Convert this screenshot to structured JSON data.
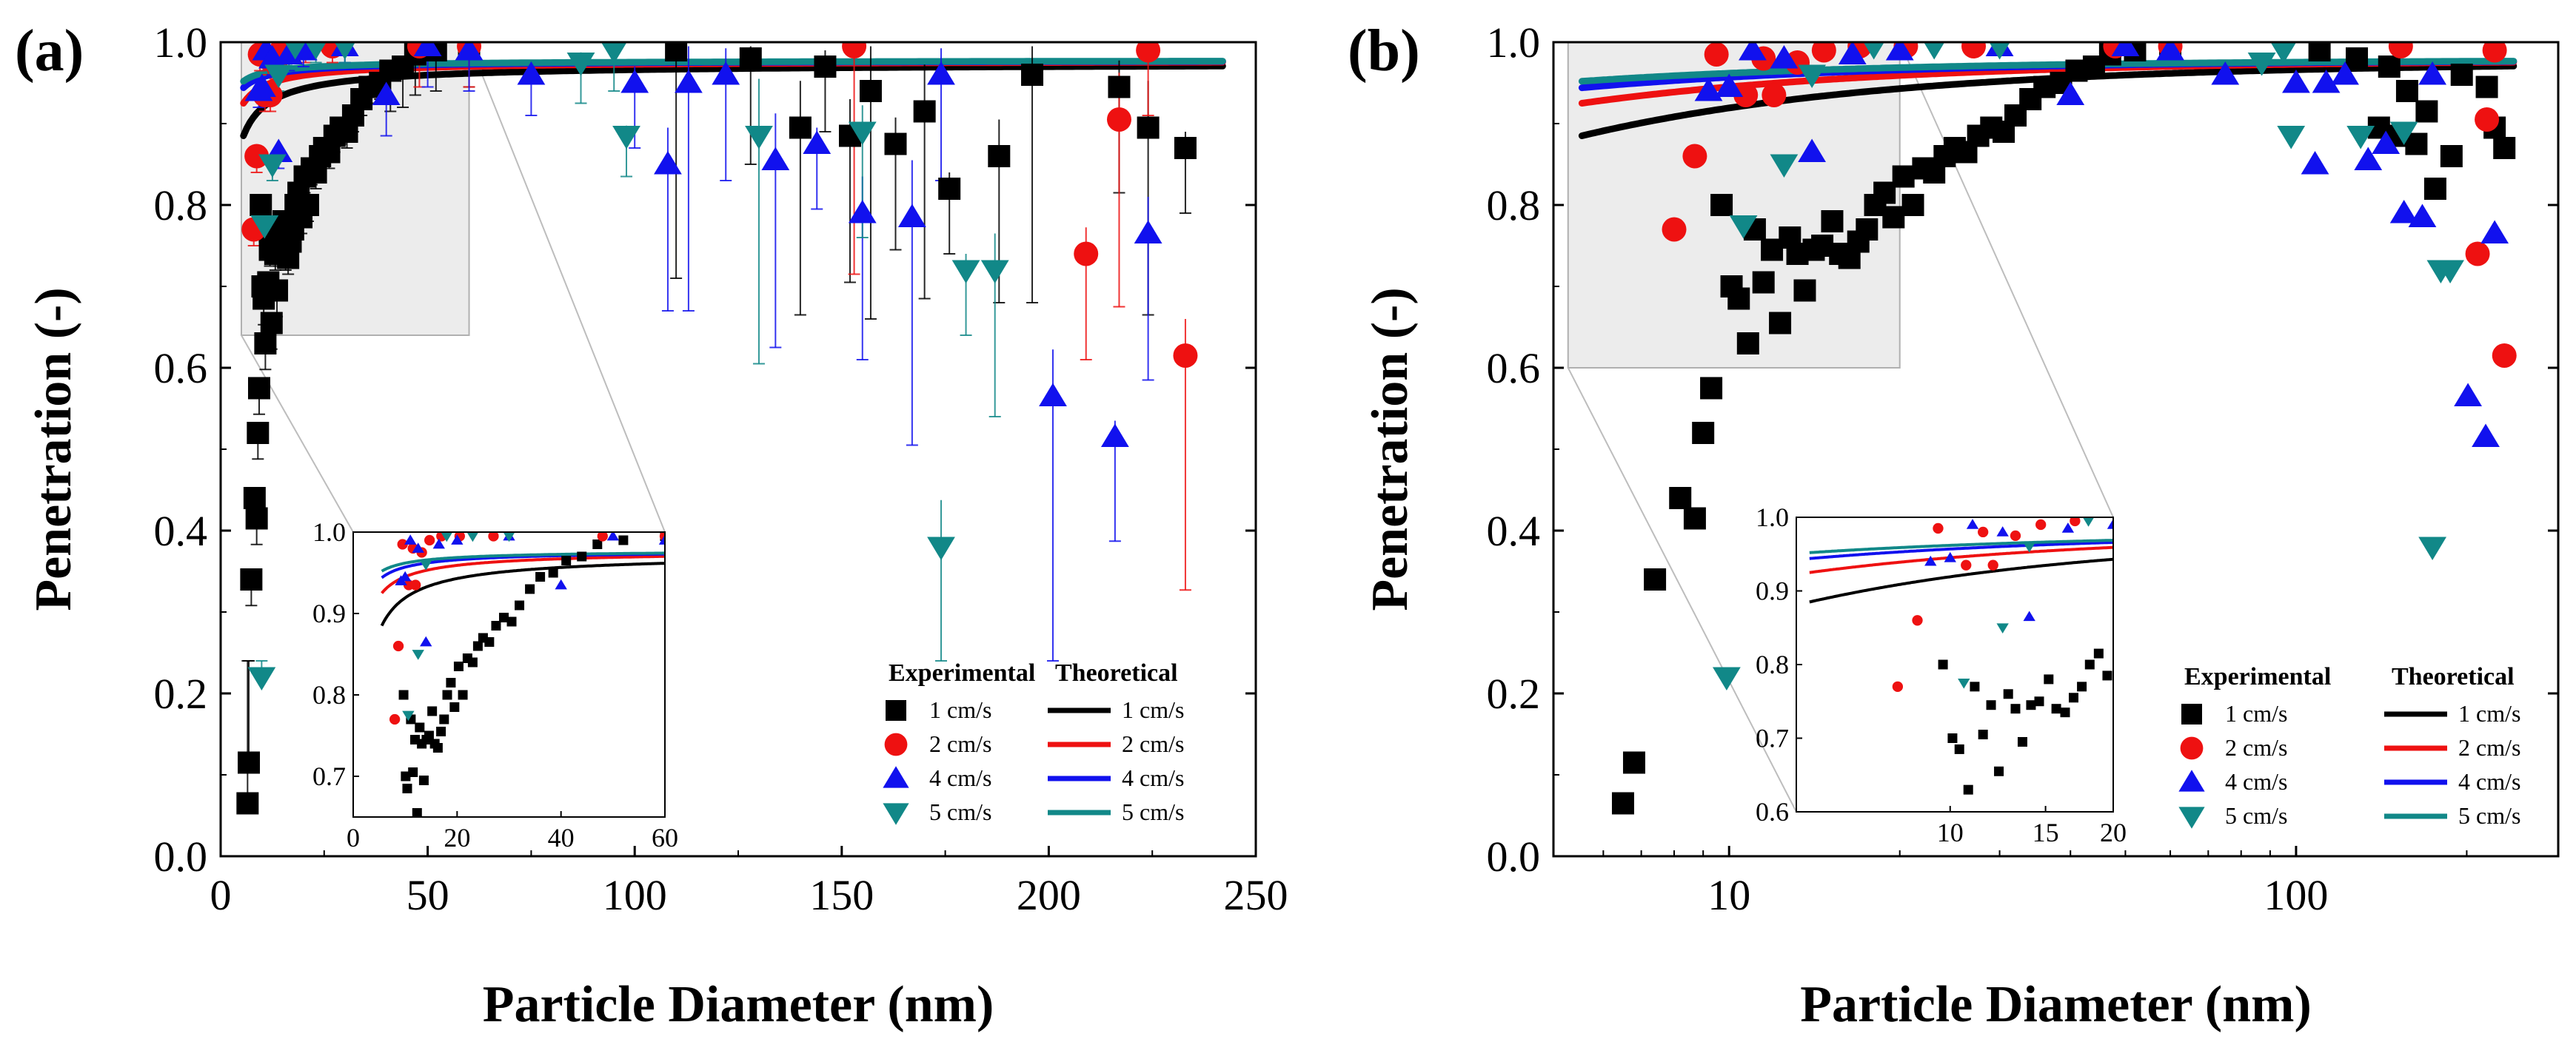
{
  "chart_data": [
    {
      "type": "scatter",
      "panel_label": "(a)",
      "xlabel": "Particle Diameter (nm)",
      "ylabel": "Penetration (-)",
      "xscale": "linear",
      "xlim": [
        0,
        250
      ],
      "ylim": [
        0,
        1.0
      ],
      "xticks": [
        0,
        50,
        100,
        150,
        200,
        250
      ],
      "xtick_labels": [
        "0",
        "50",
        "100",
        "150",
        "200",
        "250"
      ],
      "yticks": [
        0,
        0.2,
        0.4,
        0.6,
        0.8,
        1.0
      ],
      "ytick_labels": [
        "0.0",
        "0.2",
        "0.4",
        "0.6",
        "0.8",
        "1.0"
      ],
      "legend": {
        "experimental_title": "Experimental",
        "theoretical_title": "Theoretical",
        "entries": [
          "1 cm/s",
          "2 cm/s",
          "4 cm/s",
          "5 cm/s"
        ]
      },
      "zoom_box": {
        "x": [
          5,
          60
        ],
        "y": [
          0.64,
          1.0
        ]
      },
      "inset": {
        "xlim": [
          0,
          60
        ],
        "ylim": [
          0.65,
          1.0
        ],
        "xticks": [
          0,
          20,
          40,
          60
        ],
        "xtick_labels": [
          "0",
          "20",
          "40",
          "60"
        ],
        "yticks": [
          0.7,
          0.8,
          0.9,
          1.0
        ],
        "ytick_labels": [
          "0.7",
          "0.8",
          "0.9",
          "1.0"
        ]
      }
    },
    {
      "type": "scatter",
      "panel_label": "(b)",
      "xlabel": "Particle Diameter (nm)",
      "ylabel": "Penetration (-)",
      "xscale": "log",
      "xlim": [
        4.9,
        290
      ],
      "ylim": [
        0,
        1.0
      ],
      "xticks": [
        10,
        100
      ],
      "xtick_labels": [
        "10",
        "100"
      ],
      "yticks": [
        0,
        0.2,
        0.4,
        0.6,
        0.8,
        1.0
      ],
      "ytick_labels": [
        "0.0",
        "0.2",
        "0.4",
        "0.6",
        "0.8",
        "1.0"
      ],
      "legend": {
        "experimental_title": "Experimental",
        "theoretical_title": "Theoretical",
        "entries": [
          "1 cm/s",
          "2 cm/s",
          "4 cm/s",
          "5 cm/s"
        ]
      },
      "zoom_box": {
        "x": [
          5.2,
          20
        ],
        "y": [
          0.6,
          1.0
        ]
      },
      "inset": {
        "xscale": "log",
        "xlim": [
          5.2,
          20
        ],
        "ylim": [
          0.6,
          1.0
        ],
        "xticks": [
          10,
          15,
          20
        ],
        "xtick_labels": [
          "10",
          "15",
          "20"
        ],
        "yticks": [
          0.6,
          0.7,
          0.8,
          0.9,
          1.0
        ],
        "ytick_labels": [
          "0.6",
          "0.7",
          "0.8",
          "0.9",
          "1.0"
        ]
      }
    }
  ],
  "series": [
    {
      "name": "1 cm/s",
      "color": "#000000",
      "marker": "square",
      "theory": {
        "p_max": 0.975,
        "a": 0.09,
        "d_ref": 5.5,
        "power": 0.8
      },
      "points": [
        [
          6.5,
          0.065
        ],
        [
          6.8,
          0.115
        ],
        [
          7.4,
          0.34
        ],
        [
          8.2,
          0.44
        ],
        [
          8.7,
          0.415
        ],
        [
          9.0,
          0.52
        ],
        [
          9.3,
          0.575
        ],
        [
          9.7,
          0.8
        ],
        [
          10.1,
          0.7
        ],
        [
          10.4,
          0.685
        ],
        [
          10.8,
          0.63
        ],
        [
          11.1,
          0.77
        ],
        [
          11.5,
          0.705
        ],
        [
          11.9,
          0.745
        ],
        [
          12.3,
          0.655
        ],
        [
          12.8,
          0.76
        ],
        [
          13.2,
          0.74
        ],
        [
          13.6,
          0.695
        ],
        [
          14.1,
          0.745
        ],
        [
          14.6,
          0.75
        ],
        [
          15.2,
          0.78
        ],
        [
          15.7,
          0.74
        ],
        [
          16.3,
          0.735
        ],
        [
          16.9,
          0.755
        ],
        [
          17.5,
          0.77
        ],
        [
          18.1,
          0.8
        ],
        [
          18.8,
          0.815
        ],
        [
          19.5,
          0.785
        ],
        [
          20.3,
          0.835
        ],
        [
          21.1,
          0.8
        ],
        [
          22.0,
          0.845
        ],
        [
          23.0,
          0.84
        ],
        [
          24.0,
          0.86
        ],
        [
          25.0,
          0.87
        ],
        [
          26.2,
          0.865
        ],
        [
          27.5,
          0.885
        ],
        [
          29.0,
          0.895
        ],
        [
          30.5,
          0.89
        ],
        [
          32.0,
          0.91
        ],
        [
          34.0,
          0.93
        ],
        [
          36.0,
          0.945
        ],
        [
          38.5,
          0.95
        ],
        [
          41.0,
          0.965
        ],
        [
          44.0,
          0.97
        ],
        [
          47.0,
          0.985
        ],
        [
          52.0,
          0.99
        ],
        [
          60.0,
          0.995
        ],
        [
          110.0,
          0.99
        ],
        [
          128.0,
          0.98
        ],
        [
          140.0,
          0.895
        ],
        [
          146.0,
          0.97
        ],
        [
          152.0,
          0.885
        ],
        [
          157.0,
          0.94
        ],
        [
          163.0,
          0.875
        ],
        [
          170.0,
          0.915
        ],
        [
          176.0,
          0.82
        ],
        [
          188.0,
          0.86
        ],
        [
          196.0,
          0.96
        ],
        [
          217.0,
          0.945
        ],
        [
          224.0,
          0.895
        ],
        [
          233.0,
          0.87
        ]
      ]
    },
    {
      "name": "2 cm/s",
      "color": "#ee1111",
      "marker": "circle",
      "theory": {
        "p_max": 0.978,
        "a": 0.053,
        "d_ref": 5.5,
        "power": 0.8
      },
      "points": [
        [
          8.0,
          0.77
        ],
        [
          8.7,
          0.86
        ],
        [
          9.5,
          0.985
        ],
        [
          10.7,
          0.935
        ],
        [
          11.5,
          0.98
        ],
        [
          12.0,
          0.935
        ],
        [
          13.2,
          0.975
        ],
        [
          14.7,
          0.99
        ],
        [
          17.0,
          0.995
        ],
        [
          20.5,
          0.995
        ],
        [
          27.0,
          0.995
        ],
        [
          48.0,
          0.995
        ],
        [
          60.0,
          0.995
        ],
        [
          153.0,
          0.995
        ],
        [
          209.0,
          0.74
        ],
        [
          217.0,
          0.905
        ],
        [
          224.0,
          0.99
        ],
        [
          233.0,
          0.615
        ]
      ]
    },
    {
      "name": "4 cm/s",
      "color": "#1111ee",
      "marker": "triangle-up",
      "theory": {
        "p_max": 0.978,
        "a": 0.034,
        "d_ref": 5.5,
        "power": 0.8
      },
      "points": [
        [
          9.2,
          0.94
        ],
        [
          10.0,
          0.945
        ],
        [
          11.0,
          0.99
        ],
        [
          12.5,
          0.98
        ],
        [
          14.0,
          0.865
        ],
        [
          16.5,
          0.985
        ],
        [
          20.0,
          0.99
        ],
        [
          30.0,
          0.995
        ],
        [
          40.0,
          0.935
        ],
        [
          50.0,
          0.995
        ],
        [
          60.0,
          0.99
        ],
        [
          75.0,
          0.96
        ],
        [
          100.0,
          0.95
        ],
        [
          108.0,
          0.85
        ],
        [
          113.0,
          0.95
        ],
        [
          122.0,
          0.96
        ],
        [
          134.0,
          0.855
        ],
        [
          144.0,
          0.875
        ],
        [
          155.0,
          0.79
        ],
        [
          167.0,
          0.785
        ],
        [
          174.0,
          0.96
        ],
        [
          201.0,
          0.565
        ],
        [
          216.0,
          0.515
        ],
        [
          224.0,
          0.765
        ]
      ]
    },
    {
      "name": "5 cm/s",
      "color": "#118888",
      "marker": "triangle-down",
      "theory": {
        "p_max": 0.978,
        "a": 0.026,
        "d_ref": 5.5,
        "power": 0.8
      },
      "points": [
        [
          9.9,
          0.22
        ],
        [
          10.6,
          0.775
        ],
        [
          12.5,
          0.85
        ],
        [
          14.0,
          0.96
        ],
        [
          18.0,
          0.995
        ],
        [
          23.0,
          0.995
        ],
        [
          30.0,
          0.995
        ],
        [
          87.0,
          0.975
        ],
        [
          95.0,
          0.99
        ],
        [
          98.0,
          0.885
        ],
        [
          130.0,
          0.885
        ],
        [
          155.0,
          0.89
        ],
        [
          174.0,
          0.38
        ],
        [
          180.0,
          0.72
        ],
        [
          187.0,
          0.72
        ]
      ]
    }
  ]
}
